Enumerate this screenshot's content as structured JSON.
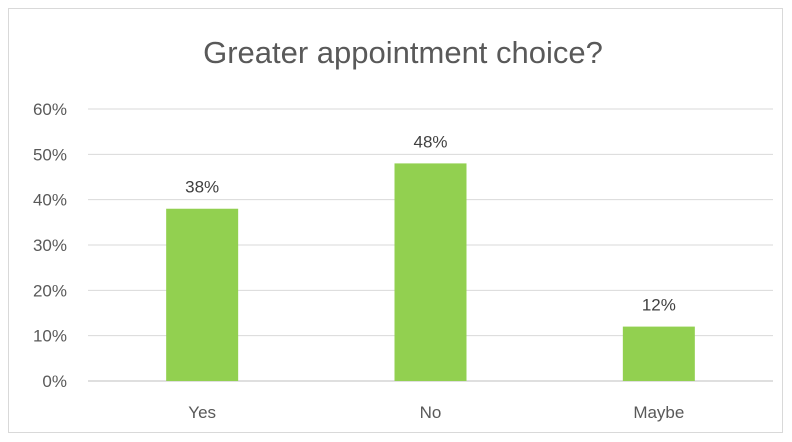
{
  "chart_data": {
    "type": "bar",
    "title": "Greater appointment choice?",
    "categories": [
      "Yes",
      "No",
      "Maybe"
    ],
    "values": [
      38,
      48,
      12
    ],
    "data_labels": [
      "38%",
      "48%",
      "12%"
    ],
    "ylim": [
      0,
      60
    ],
    "y_ticks": [
      "0%",
      "10%",
      "20%",
      "30%",
      "40%",
      "50%",
      "60%"
    ],
    "grid": true,
    "legend": "none",
    "bar_color": "#92d050"
  }
}
